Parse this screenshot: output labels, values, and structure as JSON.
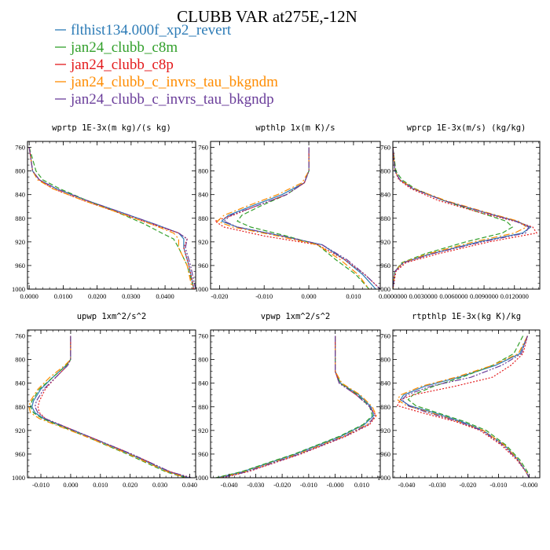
{
  "figure": {
    "title": "CLUBB VAR at275E,-12N",
    "legend": [
      {
        "label": "flthist134.000f_xp2_revert",
        "color": "#2c7bb6",
        "dash": "solid"
      },
      {
        "label": "jan24_clubb_c8m",
        "color": "#33a02c",
        "dash": "6,3"
      },
      {
        "label": "jan24_clubb_c8p",
        "color": "#e31a1c",
        "dash": "2,2"
      },
      {
        "label": "jan24_clubb_c_invrs_tau_bkgndm",
        "color": "#ff8c00",
        "dash": "8,3,2,3"
      },
      {
        "label": "jan24_clubb_c_invrs_tau_bkgndp",
        "color": "#6a3d9a",
        "dash": "8,2,2,2,2,2"
      }
    ]
  },
  "chart_data": [
    {
      "type": "line",
      "title": "wprtp  1E-3x(m kg)/(s kg)",
      "xlim": [
        -0.0005,
        0.049
      ],
      "xticks": [
        0,
        0.01,
        0.02,
        0.03,
        0.04
      ],
      "xtick_labels": [
        "0.0000",
        "0.0100",
        "0.0200",
        "0.0300",
        "0.0400"
      ],
      "ylim": [
        750,
        1000
      ],
      "yticks": [
        760,
        800,
        840,
        880,
        920,
        960,
        1000
      ],
      "y": [
        760,
        800,
        815,
        830,
        850,
        870,
        890,
        905,
        915,
        930,
        960,
        1000
      ],
      "series": [
        {
          "name": "flthist134.000f_xp2_revert",
          "values": [
            0,
            0.001,
            0.003,
            0.008,
            0.017,
            0.027,
            0.037,
            0.044,
            0.0455,
            0.0455,
            0.047,
            0.0485
          ]
        },
        {
          "name": "jan24_clubb_c8m",
          "values": [
            0,
            0.002,
            0.004,
            0.009,
            0.017,
            0.026,
            0.034,
            0.039,
            0.0425,
            0.044,
            0.0465,
            0.0485
          ]
        },
        {
          "name": "jan24_clubb_c8p",
          "values": [
            0,
            0.001,
            0.003,
            0.007,
            0.016,
            0.026,
            0.036,
            0.044,
            0.0465,
            0.0455,
            0.047,
            0.0485
          ]
        },
        {
          "name": "jan24_clubb_c_invrs_tau_bkgndm",
          "values": [
            0,
            0.001,
            0.0025,
            0.007,
            0.016,
            0.026,
            0.036,
            0.0425,
            0.044,
            0.044,
            0.0465,
            0.048
          ]
        },
        {
          "name": "jan24_clubb_c_invrs_tau_bkgndp",
          "values": [
            0,
            0.001,
            0.003,
            0.008,
            0.017,
            0.027,
            0.037,
            0.044,
            0.0465,
            0.046,
            0.0475,
            0.049
          ]
        }
      ]
    },
    {
      "type": "line",
      "title": "wpthlp  1x(m K)/s",
      "xlim": [
        -0.022,
        0.016
      ],
      "xticks": [
        -0.02,
        -0.01,
        0,
        0.01
      ],
      "xtick_labels": [
        "-0.020",
        "-0.010",
        "0.000",
        "0.010"
      ],
      "ylim": [
        750,
        1000
      ],
      "yticks": [
        760,
        800,
        840,
        880,
        920,
        960,
        1000
      ],
      "y": [
        760,
        800,
        820,
        840,
        860,
        875,
        885,
        895,
        910,
        925,
        950,
        975,
        1000
      ],
      "series": [
        {
          "name": "flthist134.000f_xp2_revert",
          "values": [
            0,
            0,
            -0.001,
            -0.006,
            -0.013,
            -0.018,
            -0.0195,
            -0.016,
            -0.006,
            0.003,
            0.008,
            0.012,
            0.015
          ]
        },
        {
          "name": "jan24_clubb_c8m",
          "values": [
            0,
            0,
            -0.001,
            -0.005,
            -0.011,
            -0.015,
            -0.016,
            -0.013,
            -0.005,
            0.002,
            0.006,
            0.0105,
            0.0135
          ]
        },
        {
          "name": "jan24_clubb_c8p",
          "values": [
            0,
            0,
            -0.001,
            -0.005,
            -0.012,
            -0.017,
            -0.021,
            -0.019,
            -0.01,
            0.002,
            0.008,
            0.0125,
            0.016
          ]
        },
        {
          "name": "jan24_clubb_c_invrs_tau_bkgndm",
          "values": [
            0,
            0,
            -0.0015,
            -0.007,
            -0.014,
            -0.019,
            -0.0205,
            -0.017,
            -0.007,
            0.002,
            0.007,
            0.011,
            0.0135
          ]
        },
        {
          "name": "jan24_clubb_c_invrs_tau_bkgndp",
          "values": [
            0,
            0,
            -0.001,
            -0.005,
            -0.012,
            -0.0175,
            -0.019,
            -0.016,
            -0.006,
            0.003,
            0.0085,
            0.0125,
            0.016
          ]
        }
      ]
    },
    {
      "type": "line",
      "title": "wprcp  1E-3x(m/s) (kg/kg)",
      "xlim": [
        0,
        0.0145
      ],
      "xticks": [
        0,
        0.003,
        0.006,
        0.009,
        0.012
      ],
      "xtick_labels": [
        "0.0000000",
        "0.0030000",
        "0.0060000",
        "0.0090000",
        "0.0120000"
      ],
      "ylim": [
        750,
        1000
      ],
      "yticks": [
        760,
        800,
        840,
        880,
        920,
        960,
        1000
      ],
      "y": [
        760,
        800,
        815,
        830,
        850,
        870,
        885,
        895,
        905,
        920,
        940,
        955,
        970,
        1000
      ],
      "series": [
        {
          "name": "flthist134.000f_xp2_revert",
          "values": [
            0,
            0.0002,
            0.0007,
            0.002,
            0.005,
            0.009,
            0.0122,
            0.0136,
            0.0128,
            0.0085,
            0.0038,
            0.001,
            0.0002,
            0
          ]
        },
        {
          "name": "jan24_clubb_c8m",
          "values": [
            0,
            0.0003,
            0.0009,
            0.0022,
            0.005,
            0.0085,
            0.0112,
            0.0118,
            0.0108,
            0.0072,
            0.0032,
            0.0009,
            0.0002,
            0
          ]
        },
        {
          "name": "jan24_clubb_c8p",
          "values": [
            0,
            0.0002,
            0.0006,
            0.0018,
            0.0045,
            0.0085,
            0.012,
            0.0138,
            0.0142,
            0.0095,
            0.0045,
            0.0013,
            0.0003,
            0
          ]
        },
        {
          "name": "jan24_clubb_c_invrs_tau_bkgndm",
          "values": [
            0,
            0.0002,
            0.0007,
            0.0021,
            0.0052,
            0.0092,
            0.0124,
            0.0132,
            0.012,
            0.008,
            0.0035,
            0.001,
            0.0002,
            0
          ]
        },
        {
          "name": "jan24_clubb_c_invrs_tau_bkgndp",
          "values": [
            0,
            0.0002,
            0.0007,
            0.002,
            0.005,
            0.009,
            0.0121,
            0.0134,
            0.0131,
            0.0088,
            0.0039,
            0.0011,
            0.0002,
            0
          ]
        }
      ]
    },
    {
      "type": "line",
      "title": "upwp  1xm^2/s^2",
      "xlim": [
        -0.0145,
        0.042
      ],
      "xticks": [
        -0.01,
        0,
        0.01,
        0.02,
        0.03,
        0.04
      ],
      "xtick_labels": [
        "-0.010",
        "0.000",
        "0.010",
        "0.020",
        "0.030",
        "0.040"
      ],
      "ylim": [
        750,
        1000
      ],
      "yticks": [
        760,
        800,
        840,
        880,
        920,
        960,
        1000
      ],
      "y": [
        760,
        800,
        810,
        830,
        850,
        870,
        880,
        890,
        900,
        930,
        960,
        990,
        1000
      ],
      "series": [
        {
          "name": "flthist134.000f_xp2_revert",
          "values": [
            0,
            0,
            -0.0015,
            -0.006,
            -0.01,
            -0.0125,
            -0.013,
            -0.012,
            -0.009,
            0.006,
            0.02,
            0.033,
            0.0395
          ]
        },
        {
          "name": "jan24_clubb_c8m",
          "values": [
            0,
            0,
            -0.0015,
            -0.006,
            -0.0105,
            -0.013,
            -0.0135,
            -0.0125,
            -0.0095,
            0.005,
            0.019,
            0.032,
            0.0385
          ]
        },
        {
          "name": "jan24_clubb_c8p",
          "values": [
            0,
            0,
            -0.001,
            -0.005,
            -0.0085,
            -0.0105,
            -0.011,
            -0.0105,
            -0.0085,
            0.006,
            0.0205,
            0.0335,
            0.0405
          ]
        },
        {
          "name": "jan24_clubb_c_invrs_tau_bkgndm",
          "values": [
            0,
            0,
            -0.002,
            -0.007,
            -0.011,
            -0.0135,
            -0.014,
            -0.0135,
            -0.0105,
            0.005,
            0.0195,
            0.0325,
            0.039
          ]
        },
        {
          "name": "jan24_clubb_c_invrs_tau_bkgndp",
          "values": [
            0,
            0,
            -0.001,
            -0.005,
            -0.009,
            -0.0115,
            -0.012,
            -0.011,
            -0.0085,
            0.006,
            0.0205,
            0.0335,
            0.0405
          ]
        }
      ]
    },
    {
      "type": "line",
      "title": "vpwp  1xm^2/s^2",
      "xlim": [
        -0.047,
        0.017
      ],
      "xticks": [
        -0.04,
        -0.03,
        -0.02,
        -0.01,
        0,
        0.01
      ],
      "xtick_labels": [
        "-0.040",
        "-0.030",
        "-0.020",
        "-0.010",
        "-0.000",
        "0.010"
      ],
      "ylim": [
        750,
        1000
      ],
      "yticks": [
        760,
        800,
        840,
        880,
        920,
        960,
        1000
      ],
      "y": [
        760,
        820,
        840,
        860,
        880,
        895,
        910,
        930,
        960,
        990,
        1000
      ],
      "series": [
        {
          "name": "flthist134.000f_xp2_revert",
          "values": [
            0,
            0,
            0.002,
            0.009,
            0.0135,
            0.0145,
            0.011,
            0.002,
            -0.015,
            -0.035,
            -0.0445
          ]
        },
        {
          "name": "jan24_clubb_c8m",
          "values": [
            0,
            0,
            0.002,
            0.0085,
            0.013,
            0.014,
            0.0105,
            0.0015,
            -0.0155,
            -0.0355,
            -0.045
          ]
        },
        {
          "name": "jan24_clubb_c8p",
          "values": [
            0,
            0,
            0.0015,
            0.008,
            0.013,
            0.0155,
            0.013,
            0.004,
            -0.013,
            -0.033,
            -0.0425
          ]
        },
        {
          "name": "jan24_clubb_c_invrs_tau_bkgndm",
          "values": [
            0,
            0,
            0.0025,
            0.0095,
            0.014,
            0.0155,
            0.012,
            0.003,
            -0.014,
            -0.034,
            -0.0435
          ]
        },
        {
          "name": "jan24_clubb_c_invrs_tau_bkgndp",
          "values": [
            0,
            0,
            0.0015,
            0.008,
            0.013,
            0.015,
            0.0125,
            0.0035,
            -0.0135,
            -0.0335,
            -0.043
          ]
        }
      ]
    },
    {
      "type": "line",
      "title": "rtpthlp  1E-3x(kg K)/kg",
      "xlim": [
        -0.0445,
        0.0035
      ],
      "xticks": [
        -0.04,
        -0.03,
        -0.02,
        -0.01,
        0
      ],
      "xtick_labels": [
        "-0.040",
        "-0.030",
        "-0.020",
        "-0.010",
        "-0.000"
      ],
      "ylim": [
        750,
        1000
      ],
      "yticks": [
        760,
        800,
        840,
        880,
        920,
        960,
        1000
      ],
      "y": [
        760,
        790,
        810,
        830,
        845,
        860,
        868,
        878,
        890,
        905,
        920,
        945,
        970,
        990,
        1000
      ],
      "series": [
        {
          "name": "flthist134.000f_xp2_revert",
          "values": [
            -0.0005,
            -0.003,
            -0.011,
            -0.023,
            -0.034,
            -0.041,
            -0.042,
            -0.039,
            -0.031,
            -0.022,
            -0.015,
            -0.008,
            -0.0035,
            -0.001,
            0
          ]
        },
        {
          "name": "jan24_clubb_c8m",
          "values": [
            -0.002,
            -0.005,
            -0.012,
            -0.022,
            -0.031,
            -0.038,
            -0.0395,
            -0.037,
            -0.03,
            -0.021,
            -0.014,
            -0.0075,
            -0.003,
            -0.0005,
            0
          ]
        },
        {
          "name": "jan24_clubb_c8p",
          "values": [
            -0.0005,
            -0.002,
            -0.006,
            -0.012,
            -0.024,
            -0.038,
            -0.042,
            -0.043,
            -0.035,
            -0.024,
            -0.016,
            -0.009,
            -0.004,
            -0.001,
            0
          ]
        },
        {
          "name": "jan24_clubb_c_invrs_tau_bkgndm",
          "values": [
            -0.0005,
            -0.0035,
            -0.012,
            -0.024,
            -0.035,
            -0.042,
            -0.043,
            -0.04,
            -0.032,
            -0.023,
            -0.015,
            -0.008,
            -0.0035,
            -0.001,
            0
          ]
        },
        {
          "name": "jan24_clubb_c_invrs_tau_bkgndp",
          "values": [
            -0.0005,
            -0.0025,
            -0.009,
            -0.019,
            -0.032,
            -0.04,
            -0.0415,
            -0.0395,
            -0.033,
            -0.023,
            -0.0155,
            -0.0085,
            -0.0037,
            -0.001,
            0
          ]
        }
      ]
    }
  ]
}
